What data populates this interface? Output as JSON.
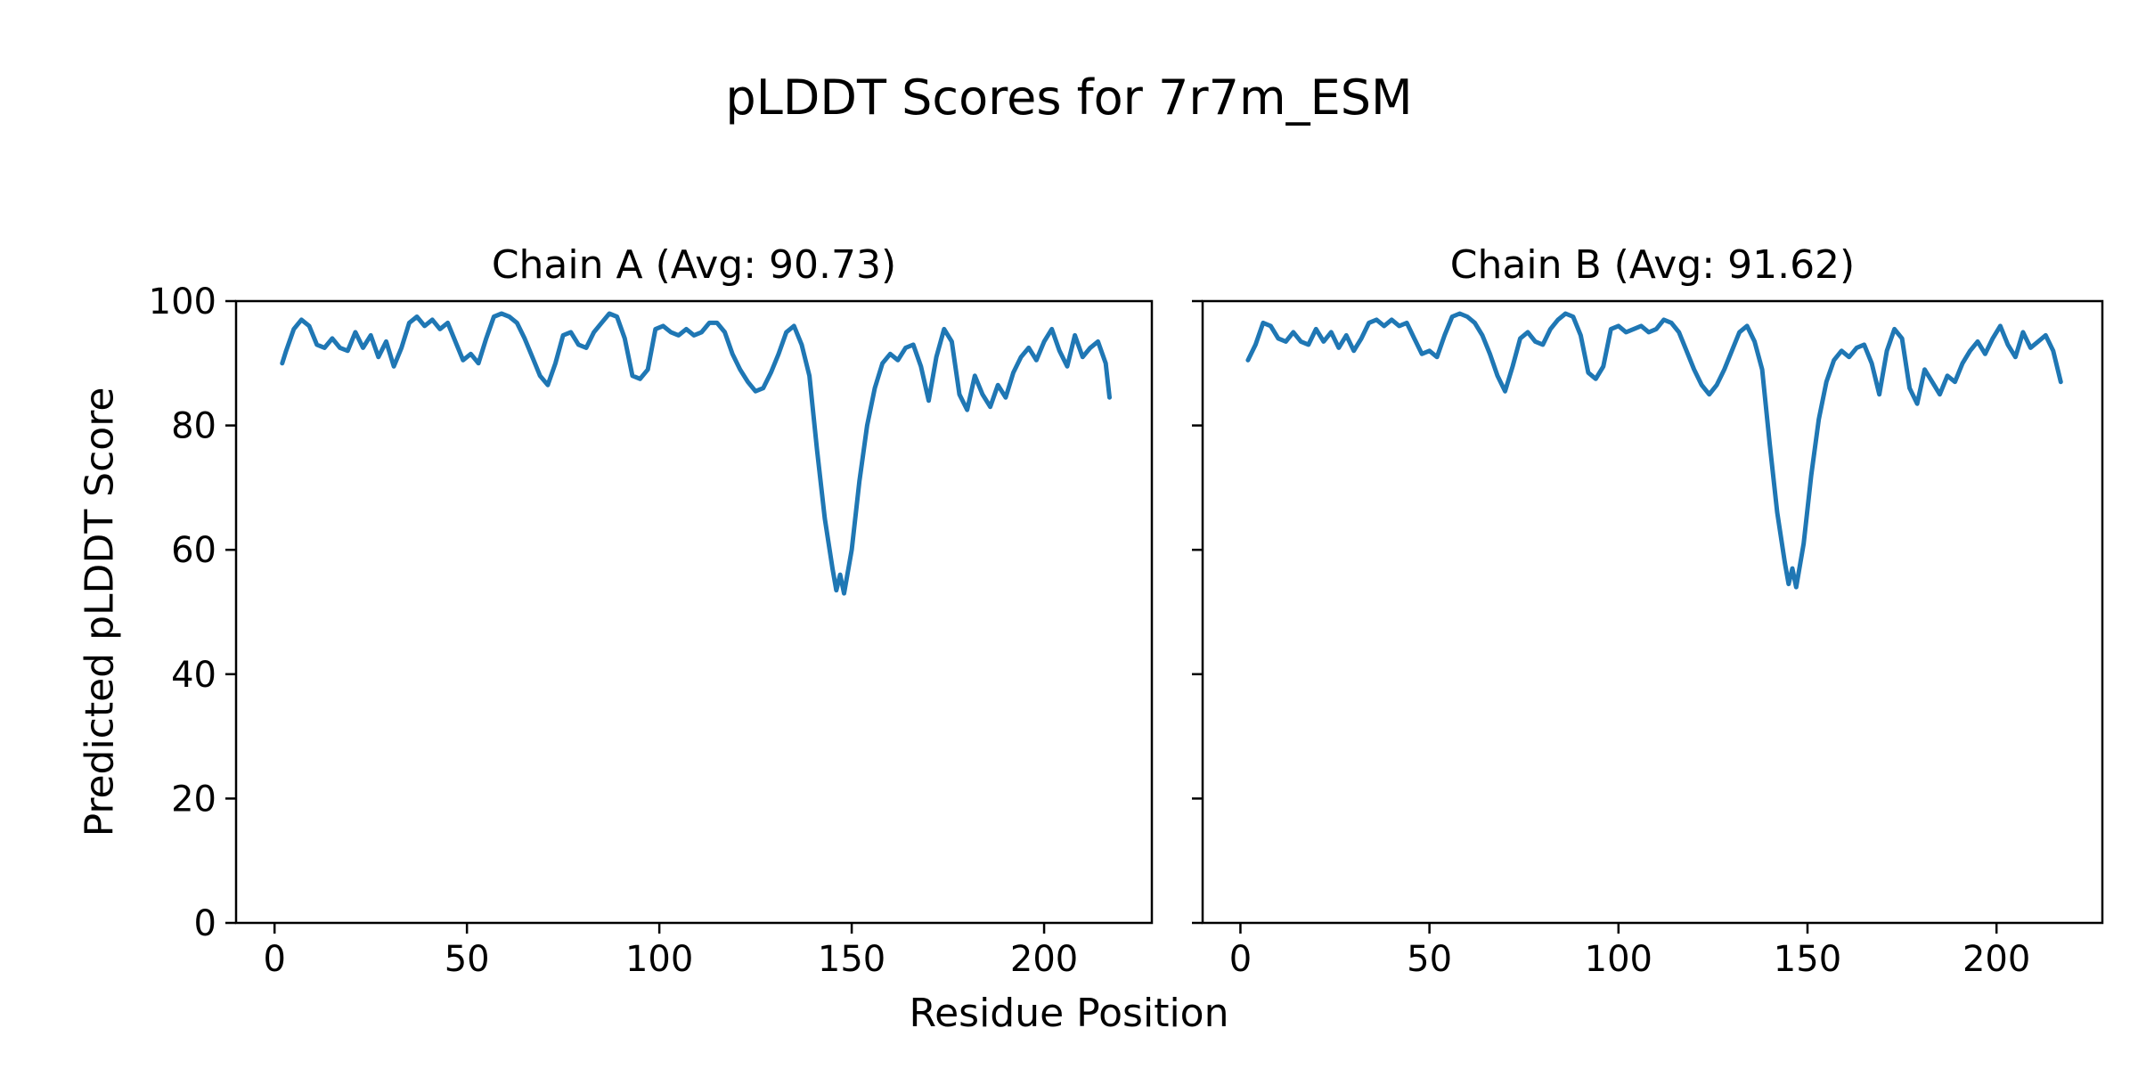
{
  "figure": {
    "title": "pLDDT Scores for 7r7m_ESM",
    "xlabel": "Residue Position",
    "ylabel": "Predicted pLDDT Score",
    "line_color": "#1f77b4",
    "axis_color": "#000000",
    "background": "#ffffff"
  },
  "chart_data": [
    {
      "type": "line",
      "title": "Chain A (Avg: 90.73)",
      "avg": 90.73,
      "xlabel": "Residue Position",
      "ylabel": "Predicted pLDDT Score",
      "xlim": [
        -10,
        228
      ],
      "ylim": [
        0,
        100
      ],
      "xticks": [
        0,
        50,
        100,
        150,
        200
      ],
      "yticks": [
        0,
        20,
        40,
        60,
        80,
        100
      ],
      "show_ytick_labels": true,
      "grid": false,
      "legend": "none",
      "points": [
        [
          2,
          90
        ],
        [
          3,
          92
        ],
        [
          5,
          95.5
        ],
        [
          7,
          97
        ],
        [
          9,
          96
        ],
        [
          11,
          93
        ],
        [
          13,
          92.5
        ],
        [
          15,
          94
        ],
        [
          17,
          92.5
        ],
        [
          19,
          92
        ],
        [
          21,
          95
        ],
        [
          23,
          92.5
        ],
        [
          25,
          94.5
        ],
        [
          27,
          91
        ],
        [
          29,
          93.5
        ],
        [
          31,
          89.5
        ],
        [
          33,
          92.5
        ],
        [
          35,
          96.5
        ],
        [
          37,
          97.5
        ],
        [
          39,
          96
        ],
        [
          41,
          97
        ],
        [
          43,
          95.5
        ],
        [
          45,
          96.5
        ],
        [
          47,
          93.5
        ],
        [
          49,
          90.5
        ],
        [
          51,
          91.5
        ],
        [
          53,
          90
        ],
        [
          55,
          94
        ],
        [
          57,
          97.5
        ],
        [
          59,
          98
        ],
        [
          61,
          97.5
        ],
        [
          63,
          96.5
        ],
        [
          65,
          94
        ],
        [
          67,
          91
        ],
        [
          69,
          88
        ],
        [
          71,
          86.5
        ],
        [
          73,
          90
        ],
        [
          75,
          94.5
        ],
        [
          77,
          95
        ],
        [
          79,
          93
        ],
        [
          81,
          92.5
        ],
        [
          83,
          95
        ],
        [
          85,
          96.5
        ],
        [
          87,
          98
        ],
        [
          89,
          97.5
        ],
        [
          91,
          94
        ],
        [
          93,
          88
        ],
        [
          95,
          87.5
        ],
        [
          97,
          89
        ],
        [
          99,
          95.5
        ],
        [
          101,
          96
        ],
        [
          103,
          95
        ],
        [
          105,
          94.5
        ],
        [
          107,
          95.5
        ],
        [
          109,
          94.5
        ],
        [
          111,
          95
        ],
        [
          113,
          96.5
        ],
        [
          115,
          96.5
        ],
        [
          117,
          95
        ],
        [
          119,
          91.5
        ],
        [
          121,
          89
        ],
        [
          123,
          87
        ],
        [
          125,
          85.5
        ],
        [
          127,
          86
        ],
        [
          129,
          88.5
        ],
        [
          131,
          91.5
        ],
        [
          133,
          95
        ],
        [
          135,
          96
        ],
        [
          137,
          93
        ],
        [
          139,
          88
        ],
        [
          141,
          76
        ],
        [
          143,
          65
        ],
        [
          145,
          57
        ],
        [
          146,
          53.5
        ],
        [
          147,
          56
        ],
        [
          148,
          53
        ],
        [
          150,
          60
        ],
        [
          152,
          71
        ],
        [
          154,
          80
        ],
        [
          156,
          86
        ],
        [
          158,
          90
        ],
        [
          160,
          91.5
        ],
        [
          162,
          90.5
        ],
        [
          164,
          92.5
        ],
        [
          166,
          93
        ],
        [
          168,
          89.5
        ],
        [
          170,
          84
        ],
        [
          172,
          91
        ],
        [
          174,
          95.5
        ],
        [
          176,
          93.5
        ],
        [
          178,
          85
        ],
        [
          180,
          82.5
        ],
        [
          182,
          88
        ],
        [
          184,
          85
        ],
        [
          186,
          83
        ],
        [
          188,
          86.5
        ],
        [
          190,
          84.5
        ],
        [
          192,
          88.5
        ],
        [
          194,
          91
        ],
        [
          196,
          92.5
        ],
        [
          198,
          90.5
        ],
        [
          200,
          93.5
        ],
        [
          202,
          95.5
        ],
        [
          204,
          92
        ],
        [
          206,
          89.5
        ],
        [
          208,
          94.5
        ],
        [
          210,
          91
        ],
        [
          212,
          92.5
        ],
        [
          214,
          93.5
        ],
        [
          216,
          90
        ],
        [
          217,
          84.5
        ]
      ]
    },
    {
      "type": "line",
      "title": "Chain B (Avg: 91.62)",
      "avg": 91.62,
      "xlabel": "Residue Position",
      "ylabel": "",
      "xlim": [
        -10,
        228
      ],
      "ylim": [
        0,
        100
      ],
      "xticks": [
        0,
        50,
        100,
        150,
        200
      ],
      "yticks": [
        0,
        20,
        40,
        60,
        80,
        100
      ],
      "show_ytick_labels": false,
      "grid": false,
      "legend": "none",
      "points": [
        [
          2,
          90.5
        ],
        [
          4,
          93
        ],
        [
          6,
          96.5
        ],
        [
          8,
          96
        ],
        [
          10,
          94
        ],
        [
          12,
          93.5
        ],
        [
          14,
          95
        ],
        [
          16,
          93.5
        ],
        [
          18,
          93
        ],
        [
          20,
          95.5
        ],
        [
          22,
          93.5
        ],
        [
          24,
          95
        ],
        [
          26,
          92.5
        ],
        [
          28,
          94.5
        ],
        [
          30,
          92
        ],
        [
          32,
          94
        ],
        [
          34,
          96.5
        ],
        [
          36,
          97
        ],
        [
          38,
          96
        ],
        [
          40,
          97
        ],
        [
          42,
          96
        ],
        [
          44,
          96.5
        ],
        [
          46,
          94
        ],
        [
          48,
          91.5
        ],
        [
          50,
          92
        ],
        [
          52,
          91
        ],
        [
          54,
          94.5
        ],
        [
          56,
          97.5
        ],
        [
          58,
          98
        ],
        [
          60,
          97.5
        ],
        [
          62,
          96.5
        ],
        [
          64,
          94.5
        ],
        [
          66,
          91.5
        ],
        [
          68,
          88
        ],
        [
          70,
          85.5
        ],
        [
          72,
          89.5
        ],
        [
          74,
          94
        ],
        [
          76,
          95
        ],
        [
          78,
          93.5
        ],
        [
          80,
          93
        ],
        [
          82,
          95.5
        ],
        [
          84,
          97
        ],
        [
          86,
          98
        ],
        [
          88,
          97.5
        ],
        [
          90,
          94.5
        ],
        [
          92,
          88.5
        ],
        [
          94,
          87.5
        ],
        [
          96,
          89.5
        ],
        [
          98,
          95.5
        ],
        [
          100,
          96
        ],
        [
          102,
          95
        ],
        [
          104,
          95.5
        ],
        [
          106,
          96
        ],
        [
          108,
          95
        ],
        [
          110,
          95.5
        ],
        [
          112,
          97
        ],
        [
          114,
          96.5
        ],
        [
          116,
          95
        ],
        [
          118,
          92
        ],
        [
          120,
          89
        ],
        [
          122,
          86.5
        ],
        [
          124,
          85
        ],
        [
          126,
          86.5
        ],
        [
          128,
          89
        ],
        [
          130,
          92
        ],
        [
          132,
          95
        ],
        [
          134,
          96
        ],
        [
          136,
          93.5
        ],
        [
          138,
          89
        ],
        [
          140,
          77
        ],
        [
          142,
          66
        ],
        [
          144,
          58
        ],
        [
          145,
          54.5
        ],
        [
          146,
          57
        ],
        [
          147,
          54
        ],
        [
          149,
          61
        ],
        [
          151,
          72
        ],
        [
          153,
          81
        ],
        [
          155,
          87
        ],
        [
          157,
          90.5
        ],
        [
          159,
          92
        ],
        [
          161,
          91
        ],
        [
          163,
          92.5
        ],
        [
          165,
          93
        ],
        [
          167,
          90
        ],
        [
          169,
          85
        ],
        [
          171,
          92
        ],
        [
          173,
          95.5
        ],
        [
          175,
          94
        ],
        [
          177,
          86
        ],
        [
          179,
          83.5
        ],
        [
          181,
          89
        ],
        [
          183,
          87
        ],
        [
          185,
          85
        ],
        [
          187,
          88
        ],
        [
          189,
          87
        ],
        [
          191,
          90
        ],
        [
          193,
          92
        ],
        [
          195,
          93.5
        ],
        [
          197,
          91.5
        ],
        [
          199,
          94
        ],
        [
          201,
          96
        ],
        [
          203,
          93
        ],
        [
          205,
          91
        ],
        [
          207,
          95
        ],
        [
          209,
          92.5
        ],
        [
          211,
          93.5
        ],
        [
          213,
          94.5
        ],
        [
          215,
          92
        ],
        [
          217,
          87
        ]
      ]
    }
  ]
}
